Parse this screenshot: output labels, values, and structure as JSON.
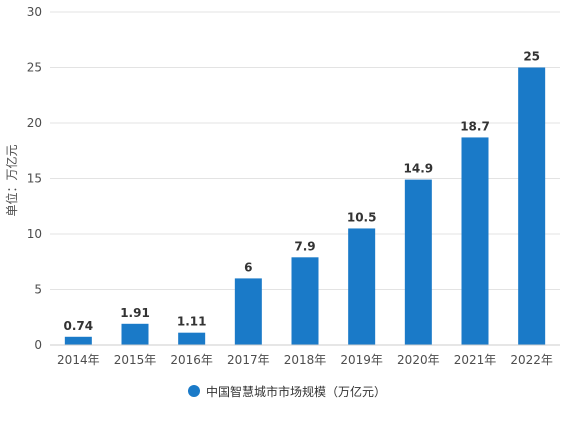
{
  "chart_data": {
    "type": "bar",
    "categories": [
      "2014年",
      "2015年",
      "2016年",
      "2017年",
      "2018年",
      "2019年",
      "2020年",
      "2021年",
      "2022年"
    ],
    "series": [
      {
        "name": "中国智慧城市市场规模（万亿元）",
        "values": [
          0.74,
          1.91,
          1.11,
          6,
          7.9,
          10.5,
          14.9,
          18.7,
          25
        ],
        "labels": [
          "0.74",
          "1.91",
          "1.11",
          "6",
          "7.9",
          "10.5",
          "14.9",
          "18.7",
          "25"
        ],
        "color": "#1a7ac8"
      }
    ],
    "ylabel": "单位：万亿元",
    "xlabel": "",
    "ylim": [
      0,
      30
    ],
    "yticks": [
      "0",
      "5",
      "10",
      "15",
      "20",
      "25",
      "30"
    ],
    "yticks_values": [
      0,
      5,
      10,
      15,
      20,
      25,
      30
    ],
    "grid": true,
    "legend_position": "bottom"
  },
  "colors": {
    "bar": "#1a7ac8",
    "grid": "#e3e3e3",
    "axis": "#cccccc"
  }
}
